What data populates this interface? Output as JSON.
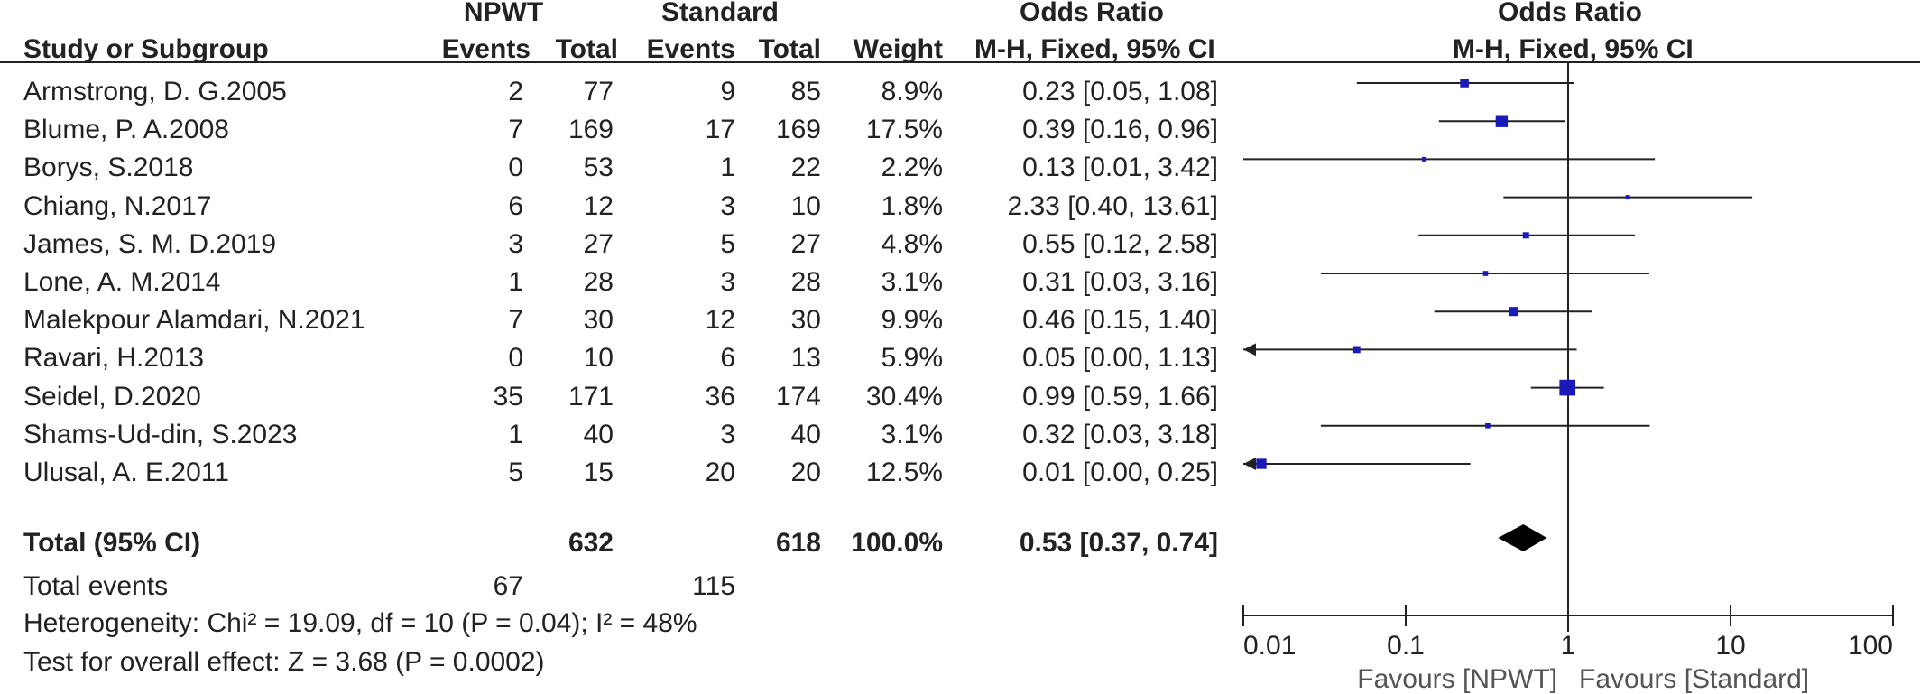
{
  "header": {
    "npwt": "NPWT",
    "standard": "Standard",
    "odds_ratio_left": "Odds Ratio",
    "odds_ratio_right": "Odds Ratio",
    "study_col": "Study or Subgroup",
    "events1": "Events",
    "total1": "Total",
    "events2": "Events",
    "total2": "Total",
    "weight": "Weight",
    "method_left": "M-H, Fixed, 95% CI",
    "method_right": "M-H, Fixed, 95% CI"
  },
  "rows": [
    {
      "study": "Armstrong, D. G.2005",
      "e1": "2",
      "t1": "77",
      "e2": "9",
      "t2": "85",
      "weight": "8.9%",
      "ci": "0.23 [0.05, 1.08]"
    },
    {
      "study": "Blume, P. A.2008",
      "e1": "7",
      "t1": "169",
      "e2": "17",
      "t2": "169",
      "weight": "17.5%",
      "ci": "0.39 [0.16, 0.96]"
    },
    {
      "study": "Borys, S.2018",
      "e1": "0",
      "t1": "53",
      "e2": "1",
      "t2": "22",
      "weight": "2.2%",
      "ci": "0.13 [0.01, 3.42]"
    },
    {
      "study": "Chiang, N.2017",
      "e1": "6",
      "t1": "12",
      "e2": "3",
      "t2": "10",
      "weight": "1.8%",
      "ci": "2.33 [0.40, 13.61]"
    },
    {
      "study": "James, S. M. D.2019",
      "e1": "3",
      "t1": "27",
      "e2": "5",
      "t2": "27",
      "weight": "4.8%",
      "ci": "0.55 [0.12, 2.58]"
    },
    {
      "study": "Lone, A. M.2014",
      "e1": "1",
      "t1": "28",
      "e2": "3",
      "t2": "28",
      "weight": "3.1%",
      "ci": "0.31 [0.03, 3.16]"
    },
    {
      "study": "Malekpour Alamdari, N.2021",
      "e1": "7",
      "t1": "30",
      "e2": "12",
      "t2": "30",
      "weight": "9.9%",
      "ci": "0.46 [0.15, 1.40]"
    },
    {
      "study": "Ravari, H.2013",
      "e1": "0",
      "t1": "10",
      "e2": "6",
      "t2": "13",
      "weight": "5.9%",
      "ci": "0.05 [0.00, 1.13]"
    },
    {
      "study": "Seidel, D.2020",
      "e1": "35",
      "t1": "171",
      "e2": "36",
      "t2": "174",
      "weight": "30.4%",
      "ci": "0.99 [0.59, 1.66]"
    },
    {
      "study": "Shams-Ud-din, S.2023",
      "e1": "1",
      "t1": "40",
      "e2": "3",
      "t2": "40",
      "weight": "3.1%",
      "ci": "0.32 [0.03, 3.18]"
    },
    {
      "study": "Ulusal, A. E.2011",
      "e1": "5",
      "t1": "15",
      "e2": "20",
      "t2": "20",
      "weight": "12.5%",
      "ci": "0.01 [0.00, 0.25]"
    }
  ],
  "total": {
    "label": "Total (95% CI)",
    "t1": "632",
    "t2": "618",
    "weight": "100.0%",
    "ci": "0.53 [0.37, 0.74]"
  },
  "total_events": {
    "label": "Total events",
    "e1": "67",
    "e2": "115"
  },
  "heterogeneity": "Heterogeneity: Chi² = 19.09, df = 10 (P = 0.04); I² = 48%",
  "overall_effect": "Test for overall effect: Z = 3.68 (P = 0.0002)",
  "colors": {
    "marker": "#1a1ab8",
    "line": "#222222"
  },
  "chart_data": {
    "type": "forest",
    "x_scale": "log",
    "xlim": [
      0.01,
      100
    ],
    "reference_line": 1,
    "ticks": [
      {
        "value": 0.01,
        "label": "0.01"
      },
      {
        "value": 0.1,
        "label": "0.1"
      },
      {
        "value": 1,
        "label": "1"
      },
      {
        "value": 10,
        "label": "10"
      },
      {
        "value": 100,
        "label": "100"
      }
    ],
    "favours_left": "Favours [NPWT]",
    "favours_right": "Favours [Standard]",
    "studies": [
      {
        "or": 0.23,
        "lo": 0.05,
        "hi": 1.08,
        "weight": 8.9
      },
      {
        "or": 0.39,
        "lo": 0.16,
        "hi": 0.96,
        "weight": 17.5
      },
      {
        "or": 0.13,
        "lo": 0.01,
        "hi": 3.42,
        "weight": 2.2
      },
      {
        "or": 2.33,
        "lo": 0.4,
        "hi": 13.61,
        "weight": 1.8
      },
      {
        "or": 0.55,
        "lo": 0.12,
        "hi": 2.58,
        "weight": 4.8
      },
      {
        "or": 0.31,
        "lo": 0.03,
        "hi": 3.16,
        "weight": 3.1
      },
      {
        "or": 0.46,
        "lo": 0.15,
        "hi": 1.4,
        "weight": 9.9
      },
      {
        "or": 0.05,
        "lo": 0.0,
        "hi": 1.13,
        "weight": 5.9
      },
      {
        "or": 0.99,
        "lo": 0.59,
        "hi": 1.66,
        "weight": 30.4
      },
      {
        "or": 0.32,
        "lo": 0.03,
        "hi": 3.18,
        "weight": 3.1
      },
      {
        "or": 0.01,
        "lo": 0.0,
        "hi": 0.25,
        "weight": 12.5
      }
    ],
    "pooled": {
      "or": 0.53,
      "lo": 0.37,
      "hi": 0.74
    }
  }
}
